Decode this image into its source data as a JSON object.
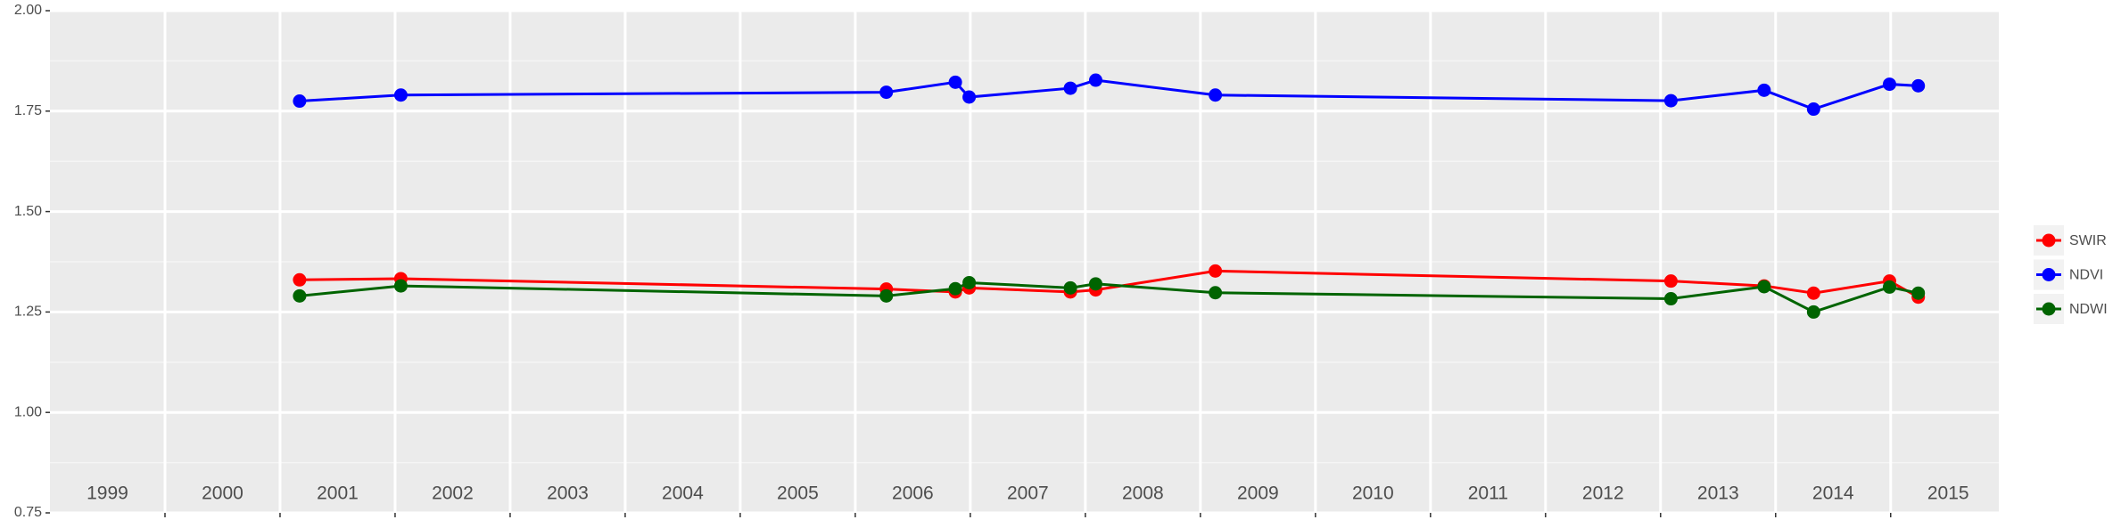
{
  "chart_data": {
    "type": "line",
    "x": [
      2001.17,
      2002.05,
      2006.27,
      2006.87,
      2006.99,
      2007.87,
      2008.09,
      2009.13,
      2013.09,
      2013.9,
      2014.33,
      2014.99,
      2015.24
    ],
    "series": [
      {
        "name": "SWIR",
        "color": "#ff0000",
        "values": [
          1.33,
          1.333,
          1.307,
          1.3,
          1.31,
          1.3,
          1.305,
          1.352,
          1.327,
          1.315,
          1.297,
          1.327,
          1.287
        ]
      },
      {
        "name": "NDVI",
        "color": "#0000ff",
        "values": [
          1.775,
          1.79,
          1.797,
          1.822,
          1.785,
          1.807,
          1.827,
          1.79,
          1.776,
          1.802,
          1.755,
          1.817,
          1.813
        ]
      },
      {
        "name": "NDWI",
        "color": "#006400",
        "values": [
          1.29,
          1.315,
          1.29,
          1.308,
          1.323,
          1.31,
          1.32,
          1.298,
          1.283,
          1.313,
          1.25,
          1.312,
          1.297
        ]
      }
    ],
    "xlim": [
      1999,
      2015.94
    ],
    "xgrid": [
      2000,
      2001,
      2002,
      2003,
      2004,
      2005,
      2006,
      2007,
      2008,
      2009,
      2010,
      2011,
      2012,
      2013,
      2014,
      2015
    ],
    "xticks": [
      {
        "value": 1999.5,
        "label": "1999"
      },
      {
        "value": 2000.5,
        "label": "2000"
      },
      {
        "value": 2001.5,
        "label": "2001"
      },
      {
        "value": 2002.5,
        "label": "2002"
      },
      {
        "value": 2003.5,
        "label": "2003"
      },
      {
        "value": 2004.5,
        "label": "2004"
      },
      {
        "value": 2005.5,
        "label": "2005"
      },
      {
        "value": 2006.5,
        "label": "2006"
      },
      {
        "value": 2007.5,
        "label": "2007"
      },
      {
        "value": 2008.5,
        "label": "2008"
      },
      {
        "value": 2009.5,
        "label": "2009"
      },
      {
        "value": 2010.5,
        "label": "2010"
      },
      {
        "value": 2011.5,
        "label": "2011"
      },
      {
        "value": 2012.5,
        "label": "2012"
      },
      {
        "value": 2013.5,
        "label": "2013"
      },
      {
        "value": 2014.5,
        "label": "2014"
      },
      {
        "value": 2015.5,
        "label": "2015"
      }
    ],
    "ylim": [
      0.75,
      2.0
    ],
    "yticks": [
      {
        "value": 0.75,
        "label": "0.75"
      },
      {
        "value": 1.0,
        "label": "1.00"
      },
      {
        "value": 1.25,
        "label": "1.25"
      },
      {
        "value": 1.5,
        "label": "1.50"
      },
      {
        "value": 1.75,
        "label": "1.75"
      },
      {
        "value": 2.0,
        "label": "2.00"
      }
    ],
    "grid": true,
    "legend": "right"
  }
}
